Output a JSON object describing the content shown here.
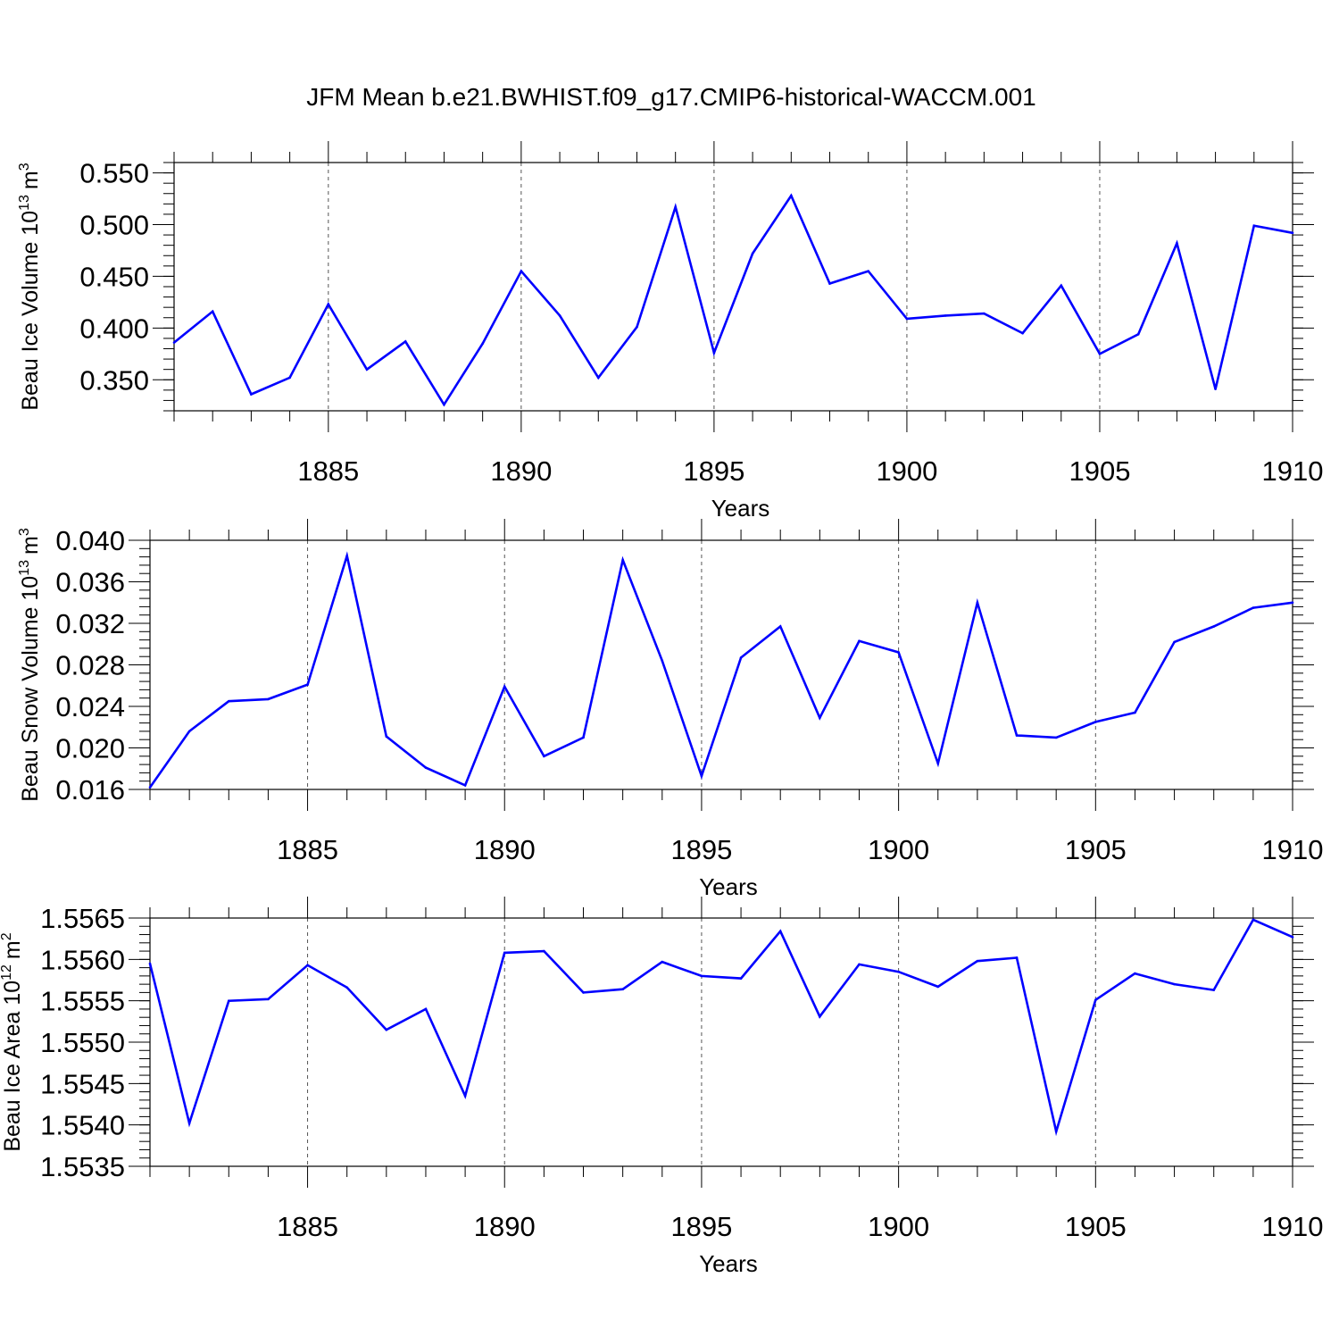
{
  "title": "JFM Mean b.e21.BWHIST.f09_g17.CMIP6-historical-WACCM.001",
  "line_color": "#0000ff",
  "chart_data": [
    {
      "type": "line",
      "ylabel_main": "Beau Ice Volume 10",
      "ylabel_exp": "13",
      "ylabel_unit": "m",
      "ylabel_unit_exp": "3",
      "xlabel": "Years",
      "xlim": [
        1881,
        1910
      ],
      "ylim": [
        0.32,
        0.56
      ],
      "x_ticks": [
        "1885",
        "1890",
        "1895",
        "1900",
        "1905",
        "1910"
      ],
      "y_ticks": [
        "0.350",
        "0.400",
        "0.450",
        "0.500",
        "0.550"
      ],
      "grid": "dashed vertical at major x ticks",
      "x": [
        1881,
        1882,
        1883,
        1884,
        1885,
        1886,
        1887,
        1888,
        1889,
        1890,
        1891,
        1892,
        1893,
        1894,
        1895,
        1896,
        1897,
        1898,
        1899,
        1900,
        1901,
        1902,
        1903,
        1904,
        1905,
        1906,
        1907,
        1908,
        1909,
        1910
      ],
      "values": [
        0.386,
        0.416,
        0.336,
        0.352,
        0.423,
        0.36,
        0.387,
        0.326,
        0.385,
        0.455,
        0.412,
        0.352,
        0.401,
        0.517,
        0.376,
        0.472,
        0.528,
        0.443,
        0.455,
        0.409,
        0.412,
        0.414,
        0.395,
        0.441,
        0.375,
        0.394,
        0.482,
        0.341,
        0.499,
        0.492
      ]
    },
    {
      "type": "line",
      "ylabel_main": "Beau Snow Volume 10",
      "ylabel_exp": "13",
      "ylabel_unit": "m",
      "ylabel_unit_exp": "3",
      "xlabel": "Years",
      "xlim": [
        1881,
        1910
      ],
      "ylim": [
        0.016,
        0.04
      ],
      "x_ticks": [
        "1885",
        "1890",
        "1895",
        "1900",
        "1905",
        "1910"
      ],
      "y_ticks": [
        "0.016",
        "0.020",
        "0.024",
        "0.028",
        "0.032",
        "0.036",
        "0.040"
      ],
      "grid": "dashed vertical at major x ticks",
      "x": [
        1881,
        1882,
        1883,
        1884,
        1885,
        1886,
        1887,
        1888,
        1889,
        1890,
        1891,
        1892,
        1893,
        1894,
        1895,
        1896,
        1897,
        1898,
        1899,
        1900,
        1901,
        1902,
        1903,
        1904,
        1905,
        1906,
        1907,
        1908,
        1909,
        1910
      ],
      "values": [
        0.0162,
        0.0216,
        0.0245,
        0.0247,
        0.0261,
        0.0385,
        0.0211,
        0.0181,
        0.0164,
        0.0259,
        0.0192,
        0.021,
        0.0381,
        0.0284,
        0.0173,
        0.0287,
        0.0317,
        0.0229,
        0.0303,
        0.0292,
        0.0185,
        0.034,
        0.0212,
        0.021,
        0.0225,
        0.0234,
        0.0302,
        0.0317,
        0.0335,
        0.034
      ]
    },
    {
      "type": "line",
      "ylabel_main": "Beau Ice Area 10",
      "ylabel_exp": "12",
      "ylabel_unit": "m",
      "ylabel_unit_exp": "2",
      "xlabel": "Years",
      "xlim": [
        1881,
        1910
      ],
      "ylim": [
        1.5535,
        1.5565
      ],
      "x_ticks": [
        "1885",
        "1890",
        "1895",
        "1900",
        "1905",
        "1910"
      ],
      "y_ticks": [
        "1.5535",
        "1.5540",
        "1.5545",
        "1.5550",
        "1.5555",
        "1.5560",
        "1.5565"
      ],
      "grid": "dashed vertical at major x ticks",
      "x": [
        1881,
        1882,
        1883,
        1884,
        1885,
        1886,
        1887,
        1888,
        1889,
        1890,
        1891,
        1892,
        1893,
        1894,
        1895,
        1896,
        1897,
        1898,
        1899,
        1900,
        1901,
        1902,
        1903,
        1904,
        1905,
        1906,
        1907,
        1908,
        1909,
        1910
      ],
      "values": [
        1.55595,
        1.55402,
        1.5555,
        1.55552,
        1.55593,
        1.55566,
        1.55515,
        1.5554,
        1.55435,
        1.55608,
        1.5561,
        1.5556,
        1.55564,
        1.55597,
        1.5558,
        1.55577,
        1.55634,
        1.55531,
        1.55594,
        1.55585,
        1.55567,
        1.55598,
        1.55602,
        1.55392,
        1.55551,
        1.55583,
        1.5557,
        1.55563,
        1.55648,
        1.55627
      ]
    }
  ]
}
